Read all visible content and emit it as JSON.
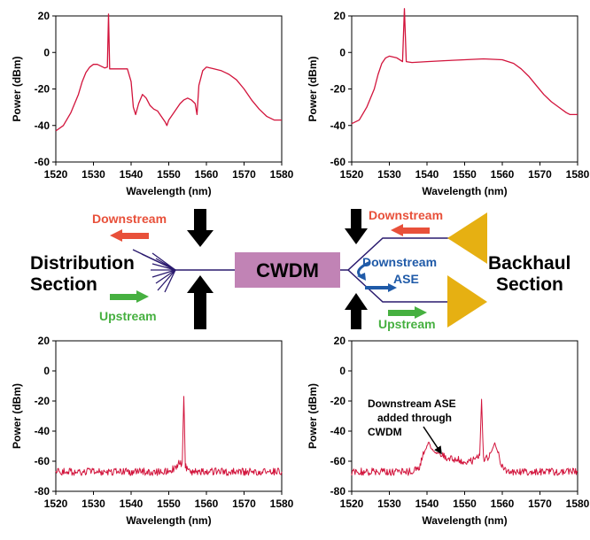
{
  "colors": {
    "spectrum": "#d2143c",
    "fiber": "#2a1a6e",
    "downstream": "#e8503a",
    "upstream": "#46b040",
    "ase": "#1f5aa8",
    "cwdm_box": "#c183b5",
    "amplifier": "#e6b012",
    "probe_arrow": "#000000"
  },
  "diagram": {
    "distribution_title": [
      "Distribution",
      "Section"
    ],
    "backhaul_title": [
      "Backhaul",
      "Section"
    ],
    "cwdm_label": "CWDM",
    "left_downstream": "Downstream",
    "left_upstream": "Upstream",
    "right_downstream": "Downstream",
    "right_upstream": "Upstream",
    "ase_label": [
      "Downstream",
      "ASE"
    ]
  },
  "chart_data": [
    {
      "type": "line",
      "position": "top-left",
      "xlabel": "Wavelength (nm)",
      "ylabel": "Power (dBm)",
      "xlim": [
        1520,
        1580
      ],
      "ylim": [
        -60,
        20
      ],
      "xticks": [
        1520,
        1530,
        1540,
        1550,
        1560,
        1570,
        1580
      ],
      "yticks": [
        -60,
        -40,
        -20,
        0,
        20
      ],
      "series": [
        {
          "x": [
            1520,
            1522,
            1524,
            1526,
            1527,
            1528,
            1529,
            1530,
            1531,
            1533,
            1533.7,
            1534,
            1534.3,
            1535,
            1537,
            1539,
            1540,
            1540.6,
            1541.2,
            1542,
            1543,
            1544,
            1545,
            1546,
            1547,
            1548,
            1549,
            1549.5,
            1550,
            1551,
            1552,
            1553,
            1554,
            1555,
            1556,
            1557,
            1557.5,
            1558,
            1559,
            1560,
            1562,
            1564,
            1566,
            1568,
            1570,
            1572,
            1574,
            1576,
            1578,
            1580
          ],
          "y": [
            -43,
            -40,
            -33,
            -23,
            -16,
            -11,
            -8,
            -6.5,
            -6.5,
            -8.5,
            -8,
            21,
            -9,
            -9,
            -9,
            -9,
            -16,
            -30,
            -34,
            -28,
            -23,
            -25,
            -29,
            -31,
            -32,
            -35,
            -38,
            -40,
            -37,
            -34,
            -31,
            -28,
            -26,
            -25,
            -26,
            -28,
            -34,
            -18,
            -10,
            -8,
            -9,
            -10,
            -12,
            -15,
            -20,
            -26,
            -31,
            -35,
            -37,
            -37
          ]
        }
      ]
    },
    {
      "type": "line",
      "position": "top-right",
      "xlabel": "Wavelength (nm)",
      "ylabel": "Power (dBm)",
      "xlim": [
        1520,
        1580
      ],
      "ylim": [
        -60,
        20
      ],
      "xticks": [
        1520,
        1530,
        1540,
        1550,
        1560,
        1570,
        1580
      ],
      "yticks": [
        -60,
        -40,
        -20,
        0,
        20
      ],
      "series": [
        {
          "x": [
            1520,
            1522,
            1524,
            1526,
            1527,
            1528,
            1529,
            1530,
            1532,
            1533.5,
            1534,
            1534.5,
            1536,
            1540,
            1545,
            1550,
            1555,
            1560,
            1563,
            1565,
            1567,
            1569,
            1571,
            1573,
            1575,
            1577,
            1578,
            1580
          ],
          "y": [
            -39,
            -37,
            -30,
            -20,
            -12,
            -6,
            -3,
            -2,
            -3,
            -5,
            24,
            -5,
            -5.5,
            -5,
            -4.5,
            -4,
            -3.5,
            -4,
            -6,
            -9,
            -13,
            -18,
            -23,
            -27,
            -30,
            -33,
            -34,
            -34
          ]
        }
      ]
    },
    {
      "type": "line",
      "position": "bottom-left",
      "xlabel": "Wavelength (nm)",
      "ylabel": "Power (dBm)",
      "xlim": [
        1520,
        1580
      ],
      "ylim": [
        -80,
        20
      ],
      "xticks": [
        1520,
        1530,
        1540,
        1550,
        1560,
        1570,
        1580
      ],
      "yticks": [
        -80,
        -60,
        -40,
        -20,
        0,
        20
      ],
      "series": [
        {
          "x": [
            1520,
            1550,
            1552,
            1553,
            1553.3,
            1553.6,
            1554,
            1554.4,
            1554.7,
            1555,
            1556,
            1558,
            1580
          ],
          "y": [
            -67,
            -67,
            -64,
            -60,
            -64,
            -62,
            -17,
            -62,
            -64,
            -66,
            -67,
            -67,
            -67
          ]
        }
      ]
    },
    {
      "type": "line",
      "position": "bottom-right",
      "xlabel": "Wavelength (nm)",
      "ylabel": "Power (dBm)",
      "xlim": [
        1520,
        1580
      ],
      "ylim": [
        -80,
        20
      ],
      "xticks": [
        1520,
        1530,
        1540,
        1550,
        1560,
        1570,
        1580
      ],
      "yticks": [
        -80,
        -60,
        -40,
        -20,
        0,
        20
      ],
      "series": [
        {
          "x": [
            1520,
            1535,
            1538,
            1539,
            1540,
            1540.5,
            1541,
            1542,
            1543,
            1544,
            1546,
            1548,
            1550,
            1552,
            1553,
            1554,
            1554.5,
            1555,
            1556,
            1557,
            1558,
            1559,
            1560,
            1562,
            1580
          ],
          "y": [
            -67,
            -67,
            -64,
            -56,
            -50,
            -47,
            -51,
            -54,
            -55,
            -56,
            -58,
            -59,
            -60,
            -60,
            -58,
            -57,
            -19,
            -58,
            -58,
            -54,
            -48,
            -56,
            -64,
            -67,
            -67
          ]
        }
      ],
      "annotation": [
        "Downstream ASE",
        "added through",
        "CWDM"
      ]
    }
  ]
}
